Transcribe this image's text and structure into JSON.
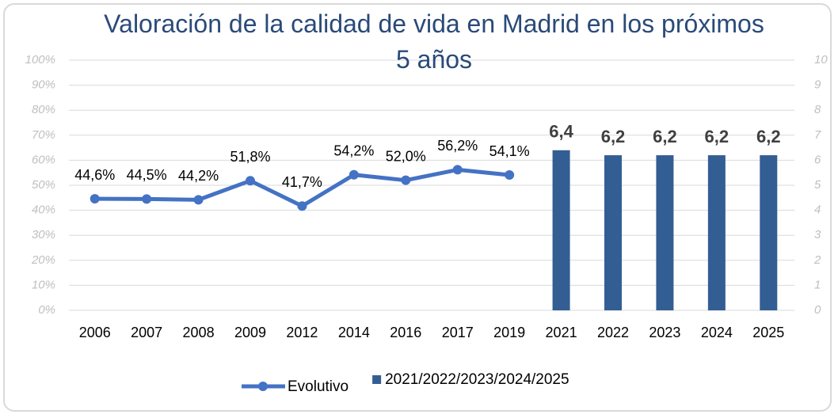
{
  "chart_data": {
    "type": "combo",
    "title": "Valoración de la calidad de vida en Madrid en los próximos 5 años",
    "categories": [
      "2006",
      "2007",
      "2008",
      "2009",
      "2012",
      "2014",
      "2016",
      "2017",
      "2019",
      "2021",
      "2022",
      "2023",
      "2024",
      "2025"
    ],
    "series": [
      {
        "name": "Evolutivo",
        "type": "line",
        "color": "#4472c4",
        "values": [
          44.6,
          44.5,
          44.2,
          51.8,
          41.7,
          54.2,
          52.0,
          56.2,
          54.1,
          null,
          null,
          null,
          null,
          null
        ],
        "value_labels": [
          "44,6%",
          "44,5%",
          "44,2%",
          "51,8%",
          "41,7%",
          "54,2%",
          "52,0%",
          "56,2%",
          "54,1%",
          null,
          null,
          null,
          null,
          null
        ]
      },
      {
        "name": "2021/2022/2023/2024/2025",
        "type": "bar",
        "axis": "y2",
        "color": "#335e94",
        "values": [
          null,
          null,
          null,
          null,
          null,
          null,
          null,
          null,
          null,
          6.4,
          6.2,
          6.2,
          6.2,
          6.2
        ],
        "value_labels": [
          null,
          null,
          null,
          null,
          null,
          null,
          null,
          null,
          null,
          "6,4",
          "6,2",
          "6,2",
          "6,2",
          "6,2"
        ]
      }
    ],
    "ylim": [
      0,
      100
    ],
    "yticks": [
      {
        "value": 0,
        "label": "0%"
      },
      {
        "value": 10,
        "label": "10%"
      },
      {
        "value": 20,
        "label": "20%"
      },
      {
        "value": 30,
        "label": "30%"
      },
      {
        "value": 40,
        "label": "40%"
      },
      {
        "value": 50,
        "label": "50%"
      },
      {
        "value": 60,
        "label": "60%"
      },
      {
        "value": 70,
        "label": "70%"
      },
      {
        "value": 80,
        "label": "80%"
      },
      {
        "value": 90,
        "label": "90%"
      },
      {
        "value": 100,
        "label": "100%"
      }
    ],
    "y2lim": [
      0,
      10
    ],
    "y2ticks": [
      0,
      1,
      2,
      3,
      4,
      5,
      6,
      7,
      8,
      9,
      10
    ],
    "grid": true
  }
}
